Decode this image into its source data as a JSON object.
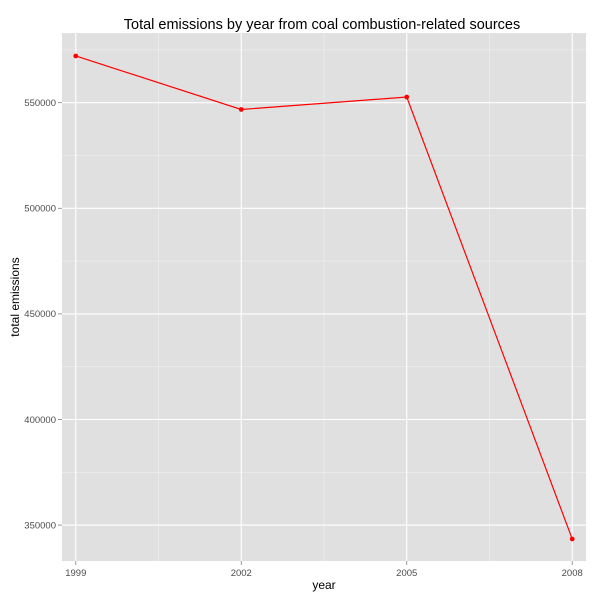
{
  "chart_data": {
    "type": "line",
    "title": "Total emissions by year from coal combustion-related sources",
    "xlabel": "year",
    "ylabel": "total emissions",
    "x": [
      1999,
      2002,
      2005,
      2008
    ],
    "x_ticks": [
      "1999",
      "2002",
      "2005",
      "2008"
    ],
    "y_ticks": [
      "350000",
      "400000",
      "450000",
      "500000",
      "550000"
    ],
    "y_tick_values": [
      350000,
      400000,
      450000,
      500000,
      550000
    ],
    "xlim": [
      1998.75,
      2008.25
    ],
    "ylim": [
      333000,
      583000
    ],
    "series": [
      {
        "values": [
          572126,
          546789,
          552675,
          343432
        ],
        "color": "#ff0000"
      }
    ],
    "panel_background": "#e0e0e0",
    "gridline_color": "#ffffff",
    "grid": true,
    "legend": "none"
  }
}
